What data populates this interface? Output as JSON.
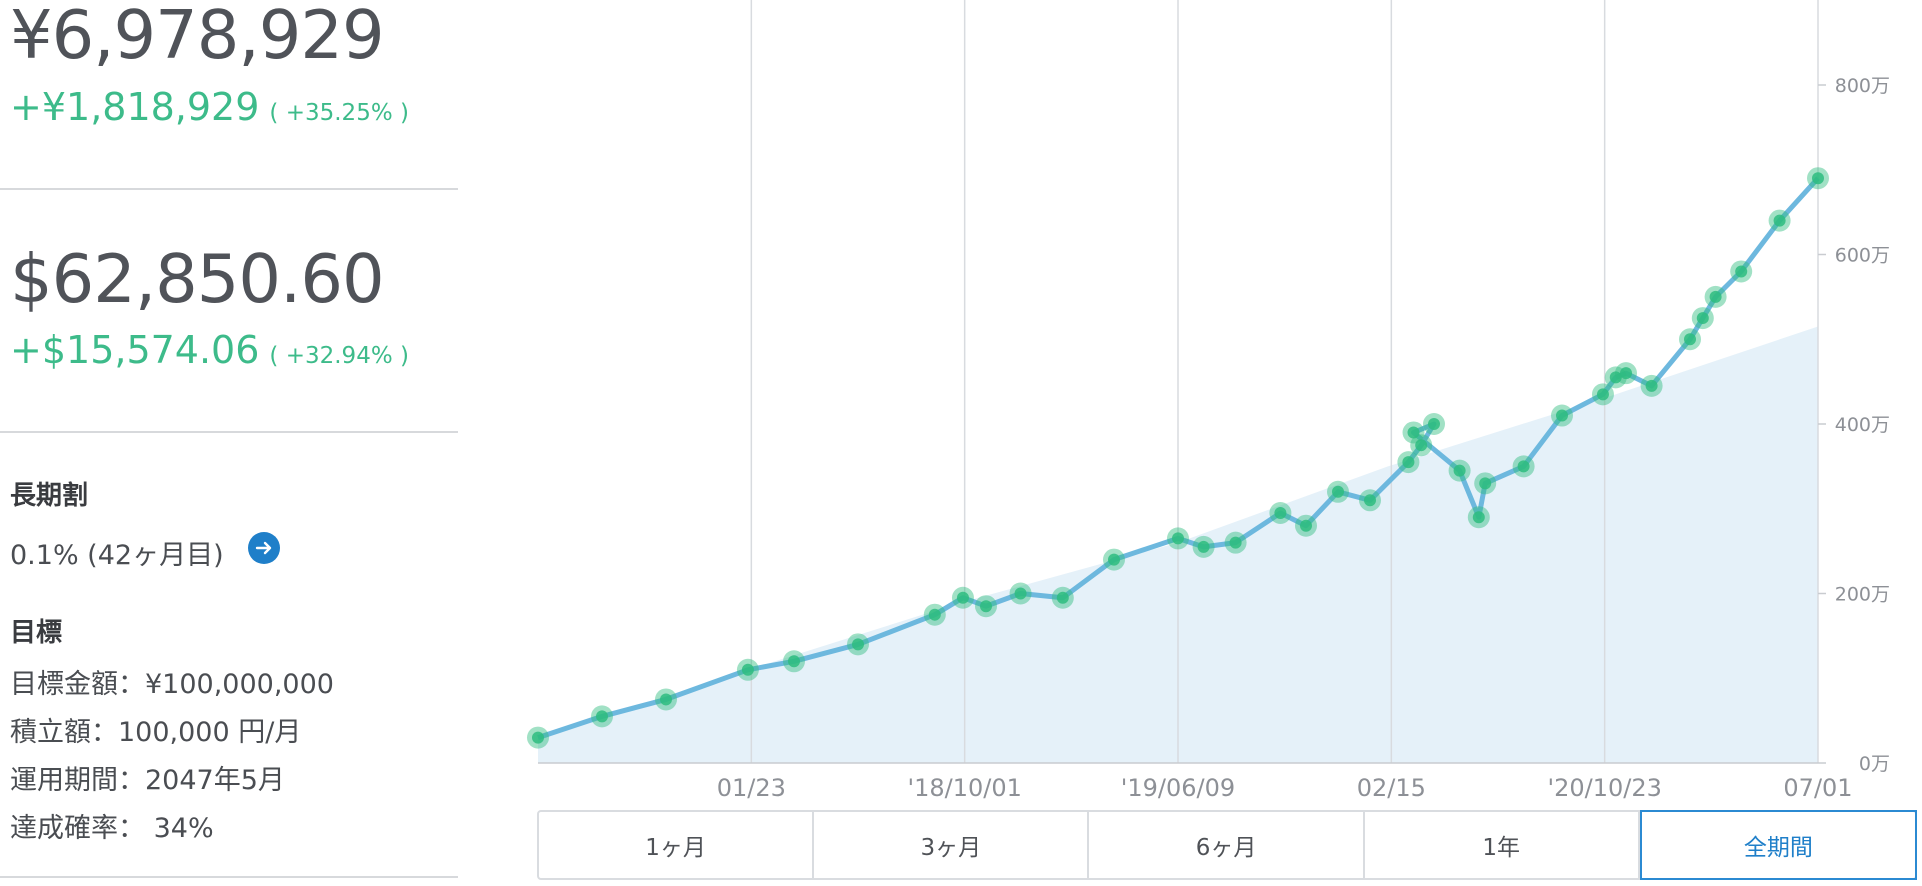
{
  "summary": {
    "jpy_value": "¥6,978,929",
    "jpy_gain": "+¥1,818,929",
    "jpy_gain_pct": "( +35.25% )",
    "usd_value": "$62,850.60",
    "usd_gain": "+$15,574.06",
    "usd_gain_pct": "( +32.94% )"
  },
  "discount": {
    "heading": "長期割",
    "value": "0.1% (42ヶ月目)",
    "icon": "arrow-right-circle-icon"
  },
  "goal": {
    "heading": "目標",
    "target_amount": "目標金額：¥100,000,000",
    "contribution": "積立額：100,000 円/月",
    "period": "運用期間：2047年5月",
    "probability": "達成確率： 34%"
  },
  "tabs": [
    {
      "label": "1ヶ月",
      "active": false
    },
    {
      "label": "3ヶ月",
      "active": false
    },
    {
      "label": "6ヶ月",
      "active": false
    },
    {
      "label": "1年",
      "active": false
    },
    {
      "label": "全期間",
      "active": true
    }
  ],
  "colors": {
    "accent": "#1f7fc9",
    "gain": "#3dbb8a",
    "line": "#6db8de",
    "marker": "#2ebc7f",
    "area": "#e5f1f9"
  },
  "chart_data": {
    "type": "line",
    "x_tick_labels": [
      "01/23",
      "'18/10/01",
      "'19/06/09",
      "02/15",
      "'20/10/23",
      "07/01"
    ],
    "y_tick_labels": [
      "0万",
      "200万",
      "400万",
      "600万",
      "800万"
    ],
    "ylim": [
      0,
      800
    ],
    "grid": "vertical",
    "series": [
      {
        "role": "valuation",
        "x": [
          0.0,
          0.05,
          0.1,
          0.164,
          0.2,
          0.25,
          0.31,
          0.332,
          0.35,
          0.377,
          0.41,
          0.45,
          0.5,
          0.52,
          0.545,
          0.58,
          0.6,
          0.625,
          0.65,
          0.68,
          0.69,
          0.7,
          0.684,
          0.72,
          0.735,
          0.74,
          0.77,
          0.8,
          0.832,
          0.842,
          0.85,
          0.87,
          0.9,
          0.91,
          0.92,
          0.94,
          0.97,
          1.0
        ],
        "values": [
          30,
          55,
          75,
          110,
          120,
          140,
          175,
          195,
          185,
          200,
          195,
          240,
          265,
          255,
          260,
          295,
          280,
          320,
          310,
          355,
          375,
          400,
          390,
          345,
          290,
          330,
          350,
          410,
          435,
          455,
          460,
          445,
          500,
          525,
          550,
          580,
          640,
          690
        ]
      },
      {
        "role": "contributions",
        "x": [
          0.0,
          0.164,
          0.332,
          0.5,
          0.664,
          0.832,
          1.0
        ],
        "values": [
          30,
          110,
          190,
          260,
          350,
          430,
          515
        ]
      }
    ]
  }
}
